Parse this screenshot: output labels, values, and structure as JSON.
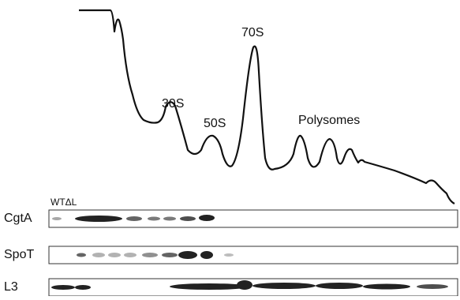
{
  "profile": {
    "peak_labels": [
      "30S",
      "50S",
      "70S",
      "Polysomes"
    ]
  },
  "blots": {
    "lane_header": "WTΔL",
    "rows": [
      "CgtA",
      "SpoT",
      "L3"
    ]
  }
}
